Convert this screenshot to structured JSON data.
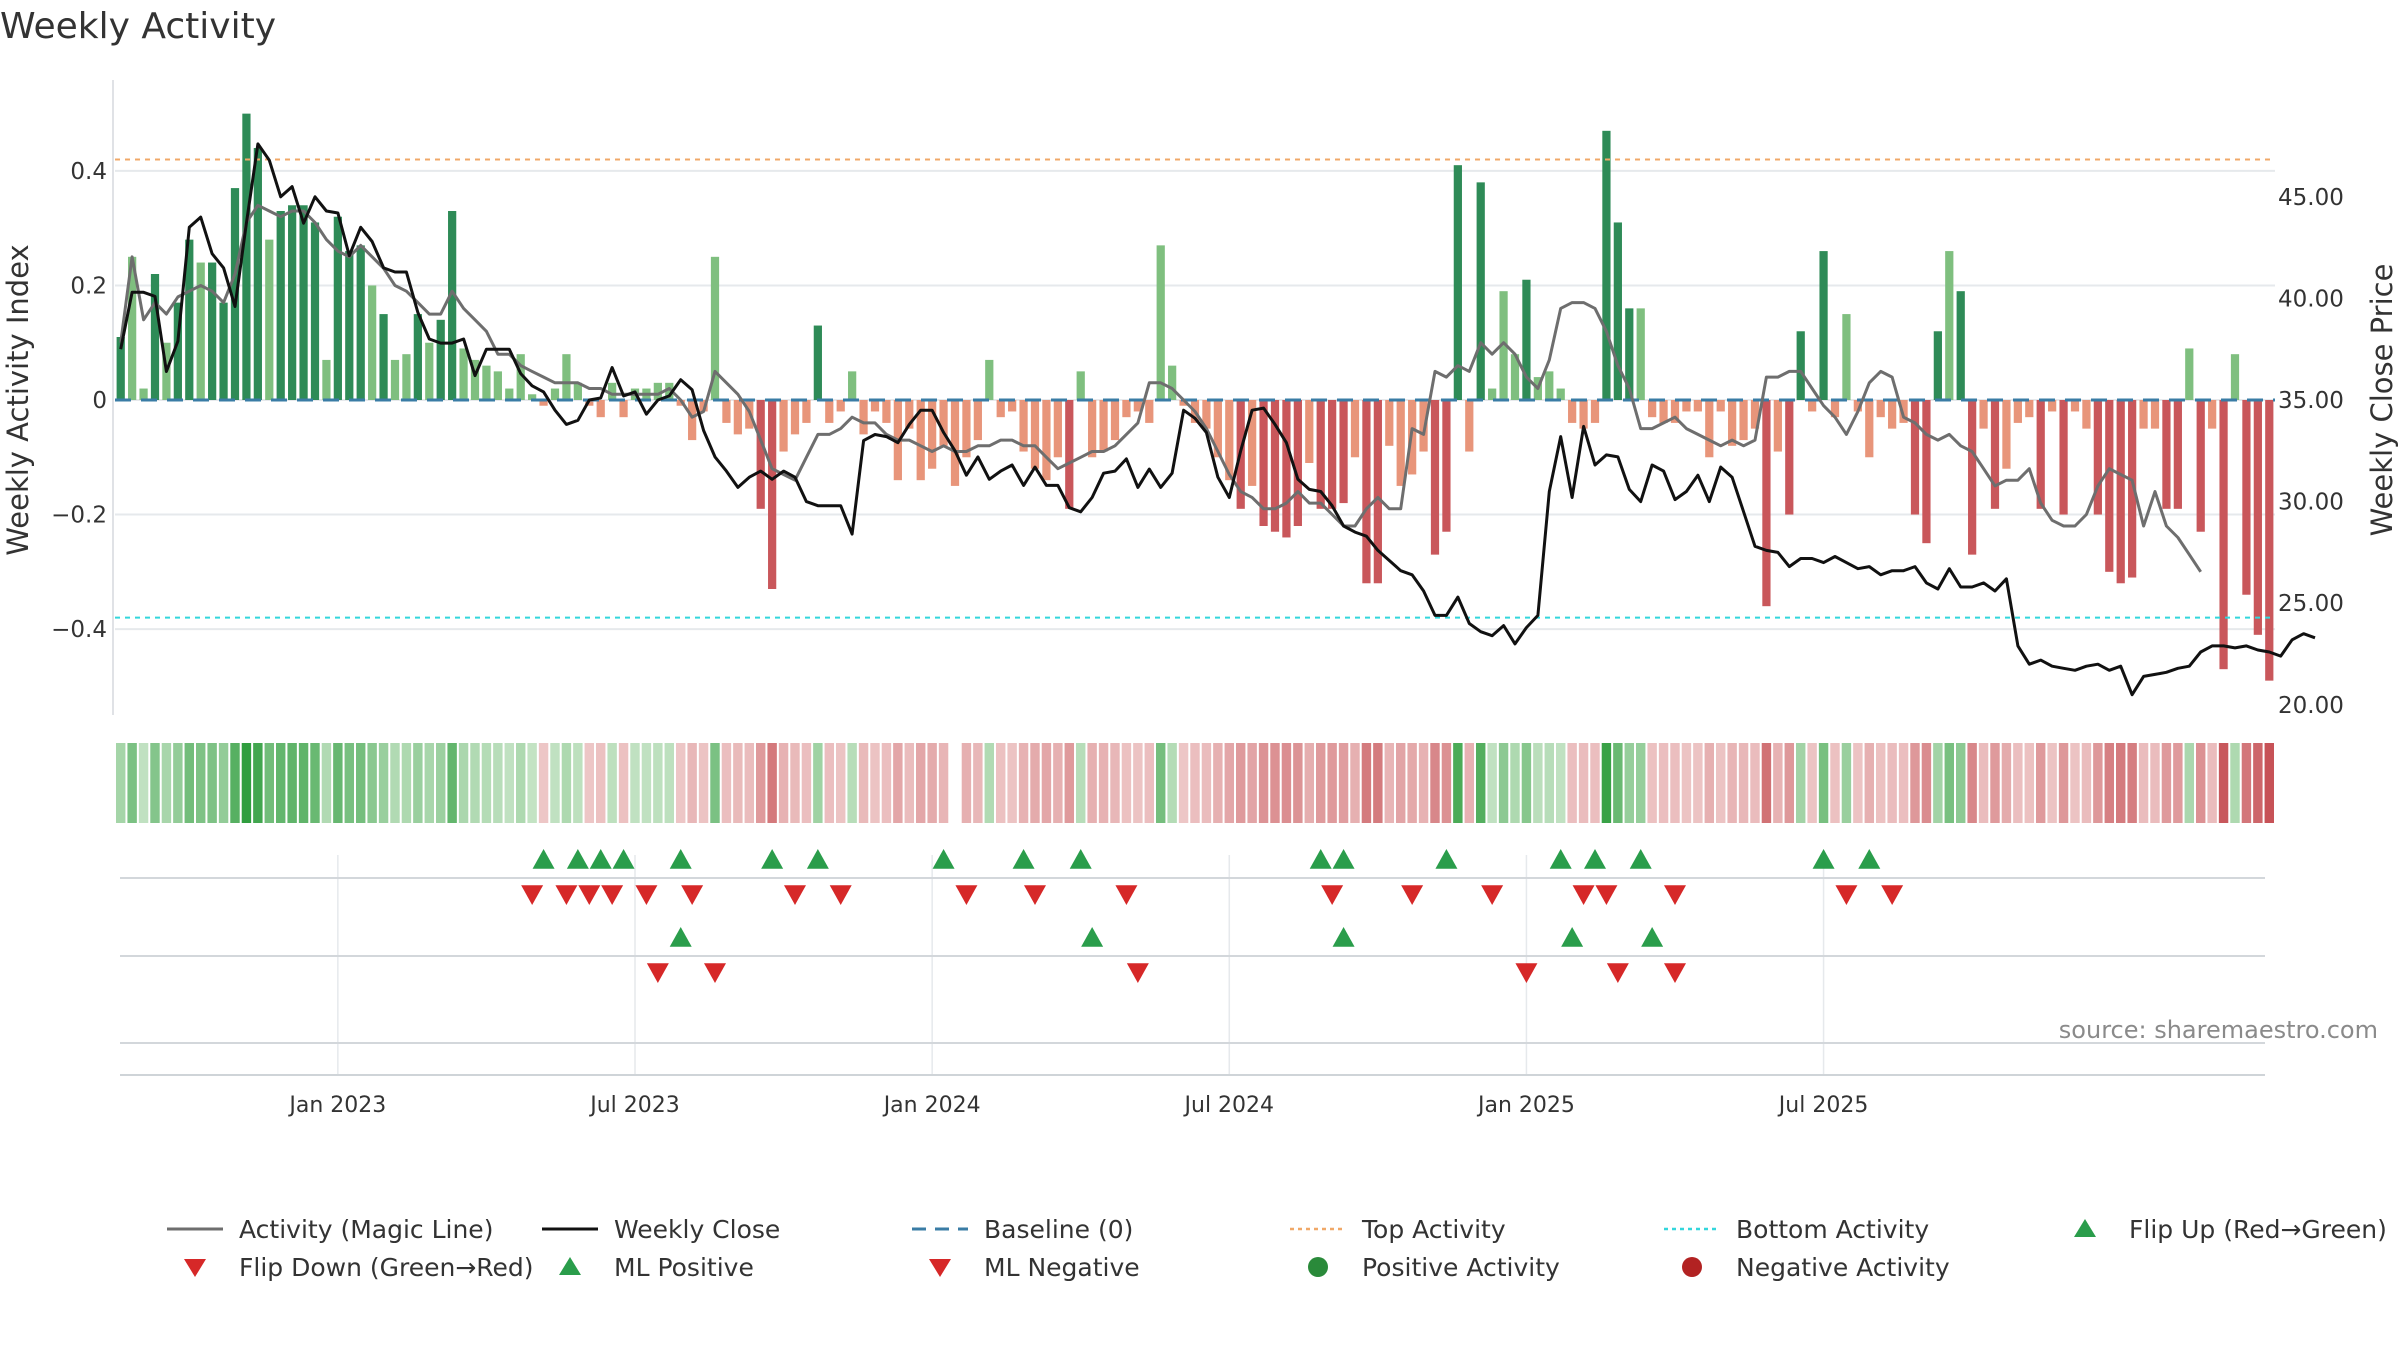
{
  "title": "Weekly Activity",
  "source_note": "source: sharemaestro.com",
  "colors": {
    "pos_dark": "#2e8b57",
    "pos_light": "#7fbf7f",
    "neg_dark": "#c9575b",
    "neg_light": "#e8957a",
    "magic_line": "#6e6e6e",
    "close_line": "#111111",
    "baseline": "#3a7ca5",
    "top_line": "#f0a868",
    "bottom_line": "#33d6dc",
    "flip_up": "#2a9d4b",
    "flip_down": "#d62828",
    "grid": "#e6e9ec"
  },
  "chart_data": {
    "type": "bar",
    "title": "Weekly Activity",
    "ylabel": "Weekly Activity Index",
    "y2label": "Weekly Close Price",
    "ylim": [
      -0.55,
      0.55
    ],
    "y2lim": [
      19.5,
      50.5
    ],
    "yticks": [
      0.4,
      0.2,
      0,
      -0.2,
      -0.4
    ],
    "ytick_labels": [
      "0.4",
      "0.2",
      "0",
      "−0.2",
      "−0.4"
    ],
    "y2ticks": [
      45,
      40,
      35,
      30,
      25,
      20
    ],
    "y2tick_labels": [
      "45.00",
      "40.00",
      "35.00",
      "30.00",
      "25.00",
      "20.00"
    ],
    "xticks": [
      {
        "week": 19,
        "label": "Jan 2023"
      },
      {
        "week": 45,
        "label": "Jul 2023"
      },
      {
        "week": 71,
        "label": "Jan 2024"
      },
      {
        "week": 97,
        "label": "Jul 2024"
      },
      {
        "week": 123,
        "label": "Jan 2025"
      },
      {
        "week": 149,
        "label": "Jul 2025"
      }
    ],
    "top_activity": 0.42,
    "bottom_activity": -0.38,
    "baseline": 0,
    "activity": [
      0.11,
      0.25,
      0.02,
      0.22,
      0.1,
      0.17,
      0.28,
      0.24,
      0.24,
      0.17,
      0.37,
      0.5,
      0.44,
      0.28,
      0.33,
      0.34,
      0.34,
      0.31,
      0.07,
      0.32,
      0.26,
      0.27,
      0.2,
      0.15,
      0.07,
      0.08,
      0.15,
      0.1,
      0.14,
      0.33,
      0.09,
      0.07,
      0.06,
      0.05,
      0.02,
      0.08,
      0.01,
      -0.01,
      0.02,
      0.08,
      0.03,
      -0.01,
      -0.03,
      0.03,
      -0.03,
      0.02,
      0.02,
      0.03,
      0.03,
      -0.01,
      -0.07,
      -0.02,
      0.25,
      -0.04,
      -0.06,
      -0.05,
      -0.19,
      -0.33,
      -0.09,
      -0.06,
      -0.04,
      0.13,
      -0.04,
      -0.02,
      0.05,
      -0.06,
      -0.02,
      -0.04,
      -0.14,
      -0.05,
      -0.14,
      -0.12,
      -0.08,
      -0.15,
      -0.1,
      -0.07,
      0.07,
      -0.03,
      -0.02,
      -0.09,
      -0.12,
      -0.14,
      -0.1,
      -0.19,
      0.05,
      -0.1,
      -0.09,
      -0.07,
      -0.03,
      -0.02,
      -0.04,
      0.27,
      0.06,
      -0.01,
      -0.04,
      -0.05,
      -0.1,
      -0.14,
      -0.19,
      -0.15,
      -0.22,
      -0.23,
      -0.24,
      -0.22,
      -0.11,
      -0.19,
      -0.19,
      -0.18,
      -0.1,
      -0.32,
      -0.32,
      -0.08,
      -0.15,
      -0.13,
      -0.09,
      -0.27,
      -0.23,
      0.41,
      -0.09,
      0.38,
      0.02,
      0.19,
      0.08,
      0.21,
      0.04,
      0.05,
      0.02,
      -0.04,
      -0.05,
      -0.04,
      0.47,
      0.31,
      0.16,
      0.16,
      -0.03,
      -0.04,
      -0.04,
      -0.02,
      -0.02,
      -0.1,
      -0.02,
      -0.08,
      -0.07,
      -0.05,
      -0.36,
      -0.09,
      -0.2,
      0.12,
      -0.02,
      0.26,
      -0.03,
      0.15,
      -0.02,
      -0.1,
      -0.03,
      -0.05,
      -0.04,
      -0.2,
      -0.25,
      0.12,
      0.26,
      0.19,
      -0.27,
      -0.05,
      -0.19,
      -0.12,
      -0.04,
      -0.03,
      -0.19,
      -0.02,
      -0.2,
      -0.02,
      -0.05,
      -0.2,
      -0.3,
      -0.32,
      -0.31,
      -0.05,
      -0.05,
      -0.19,
      -0.19,
      0.09,
      -0.23,
      -0.05,
      -0.47,
      0.08,
      -0.34,
      -0.41,
      -0.49
    ],
    "magic_line": [
      0.1,
      0.25,
      0.14,
      0.17,
      0.15,
      0.18,
      0.19,
      0.2,
      0.19,
      0.17,
      0.22,
      0.31,
      0.34,
      0.33,
      0.32,
      0.33,
      0.33,
      0.31,
      0.28,
      0.26,
      0.25,
      0.27,
      0.25,
      0.23,
      0.2,
      0.19,
      0.17,
      0.15,
      0.15,
      0.19,
      0.16,
      0.14,
      0.12,
      0.08,
      0.08,
      0.06,
      0.05,
      0.04,
      0.03,
      0.03,
      0.03,
      0.02,
      0.02,
      0.01,
      0.01,
      0.01,
      0.01,
      0.01,
      0.02,
      0.0,
      -0.03,
      -0.02,
      0.05,
      0.03,
      0.01,
      -0.02,
      -0.07,
      -0.12,
      -0.13,
      -0.14,
      -0.1,
      -0.06,
      -0.06,
      -0.05,
      -0.03,
      -0.04,
      -0.04,
      -0.06,
      -0.07,
      -0.07,
      -0.08,
      -0.09,
      -0.08,
      -0.09,
      -0.09,
      -0.08,
      -0.08,
      -0.07,
      -0.07,
      -0.08,
      -0.08,
      -0.1,
      -0.12,
      -0.11,
      -0.1,
      -0.09,
      -0.09,
      -0.08,
      -0.06,
      -0.04,
      0.03,
      0.03,
      0.02,
      0.0,
      -0.02,
      -0.05,
      -0.09,
      -0.13,
      -0.16,
      -0.17,
      -0.19,
      -0.19,
      -0.18,
      -0.16,
      -0.18,
      -0.18,
      -0.2,
      -0.22,
      -0.22,
      -0.19,
      -0.17,
      -0.19,
      -0.19,
      -0.05,
      -0.06,
      0.05,
      0.04,
      0.06,
      0.05,
      0.1,
      0.08,
      0.1,
      0.08,
      0.04,
      0.02,
      0.07,
      0.16,
      0.17,
      0.17,
      0.16,
      0.12,
      0.06,
      0.02,
      -0.05,
      -0.05,
      -0.04,
      -0.03,
      -0.05,
      -0.06,
      -0.07,
      -0.08,
      -0.07,
      -0.08,
      -0.07,
      0.04,
      0.04,
      0.05,
      0.05,
      0.02,
      -0.01,
      -0.03,
      -0.06,
      -0.02,
      0.03,
      0.05,
      0.04,
      -0.03,
      -0.04,
      -0.06,
      -0.07,
      -0.06,
      -0.08,
      -0.09,
      -0.12,
      -0.15,
      -0.14,
      -0.14,
      -0.12,
      -0.18,
      -0.21,
      -0.22,
      -0.22,
      -0.2,
      -0.15,
      -0.12,
      -0.13,
      -0.14,
      -0.22,
      -0.16,
      -0.22,
      -0.24,
      -0.27,
      -0.3
    ],
    "weekly_close": [
      37.5,
      40.3,
      40.3,
      40.1,
      36.4,
      37.9,
      43.5,
      44.0,
      42.2,
      41.5,
      39.6,
      43.7,
      47.6,
      46.8,
      45.0,
      45.5,
      43.7,
      45.0,
      44.3,
      44.2,
      42.1,
      43.5,
      42.8,
      41.5,
      41.3,
      41.3,
      39.3,
      38.0,
      37.8,
      37.8,
      38.0,
      36.2,
      37.5,
      37.5,
      37.5,
      36.3,
      35.7,
      35.4,
      34.5,
      33.8,
      34.0,
      35.0,
      35.1,
      36.6,
      35.2,
      35.4,
      34.3,
      35.0,
      35.2,
      36.0,
      35.5,
      33.5,
      32.2,
      31.5,
      30.7,
      31.2,
      31.5,
      31.1,
      31.5,
      31.2,
      30.0,
      29.8,
      29.8,
      29.8,
      28.4,
      33.0,
      33.3,
      33.2,
      32.9,
      33.8,
      34.5,
      34.5,
      33.4,
      32.5,
      31.3,
      32.2,
      31.1,
      31.5,
      31.8,
      30.8,
      31.7,
      30.8,
      30.8,
      29.7,
      29.5,
      30.2,
      31.4,
      31.5,
      32.1,
      30.7,
      31.6,
      30.7,
      31.4,
      34.5,
      34.1,
      33.4,
      31.2,
      30.2,
      32.5,
      34.5,
      34.6,
      33.8,
      32.9,
      31.1,
      30.6,
      30.5,
      29.8,
      28.8,
      28.5,
      28.3,
      27.6,
      27.1,
      26.6,
      26.4,
      25.6,
      24.4,
      24.4,
      25.3,
      24.0,
      23.6,
      23.4,
      23.9,
      23.0,
      23.8,
      24.4,
      30.5,
      33.2,
      30.2,
      33.7,
      31.8,
      32.3,
      32.2,
      30.6,
      30.0,
      31.8,
      31.5,
      30.1,
      30.5,
      31.3,
      30.0,
      31.7,
      31.2,
      29.5,
      27.8,
      27.6,
      27.5,
      26.8,
      27.2,
      27.2,
      27.0,
      27.3,
      27.0,
      26.7,
      26.8,
      26.4,
      26.6,
      26.6,
      26.8,
      26.0,
      25.7,
      26.7,
      25.8,
      25.8,
      26.0,
      25.6,
      26.2,
      22.9,
      22.0,
      22.2,
      21.9,
      21.8,
      21.7,
      21.9,
      22.0,
      21.7,
      21.9,
      20.5,
      21.4,
      21.5,
      21.6,
      21.8,
      21.9,
      22.6,
      22.9,
      22.9,
      22.8,
      22.9,
      22.7,
      22.6,
      22.4,
      23.2,
      23.5,
      23.3
    ],
    "heat_strip_gap_week": 73,
    "markers": {
      "row1_flip_up": [
        37,
        40,
        42,
        44,
        49,
        57,
        61,
        72,
        79,
        84,
        105,
        107,
        116,
        126,
        129,
        133,
        149,
        153
      ],
      "row1_flip_down": [
        36,
        39,
        41,
        43,
        46,
        50,
        59,
        63,
        74,
        80,
        88,
        106,
        113,
        120,
        128,
        130,
        136,
        151,
        155
      ],
      "row2_ml_positive": [
        49,
        85,
        107,
        127,
        134
      ],
      "row2_ml_negative": [
        47,
        52,
        89,
        123,
        131,
        136
      ]
    },
    "legend": [
      {
        "label": "Activity (Magic Line)",
        "symbol": "line",
        "color": "#6e6e6e"
      },
      {
        "label": "Weekly Close",
        "symbol": "line",
        "color": "#111111"
      },
      {
        "label": "Baseline (0)",
        "symbol": "dash",
        "color": "#3a7ca5"
      },
      {
        "label": "Top Activity",
        "symbol": "dot-line",
        "color": "#f0a868"
      },
      {
        "label": "Bottom Activity",
        "symbol": "dot-line",
        "color": "#33d6dc"
      },
      {
        "label": "Flip Up (Red→Green)",
        "symbol": "tri-up",
        "color": "#2a9d4b"
      },
      {
        "label": "Flip Down (Green→Red)",
        "symbol": "tri-down",
        "color": "#d62828"
      },
      {
        "label": "ML Positive",
        "symbol": "tri-up",
        "color": "#2a9d4b"
      },
      {
        "label": "ML Negative",
        "symbol": "tri-down",
        "color": "#d62828"
      },
      {
        "label": "Positive Activity",
        "symbol": "circle",
        "color": "#2a8a3a"
      },
      {
        "label": "Negative Activity",
        "symbol": "circle",
        "color": "#b22222"
      }
    ]
  }
}
